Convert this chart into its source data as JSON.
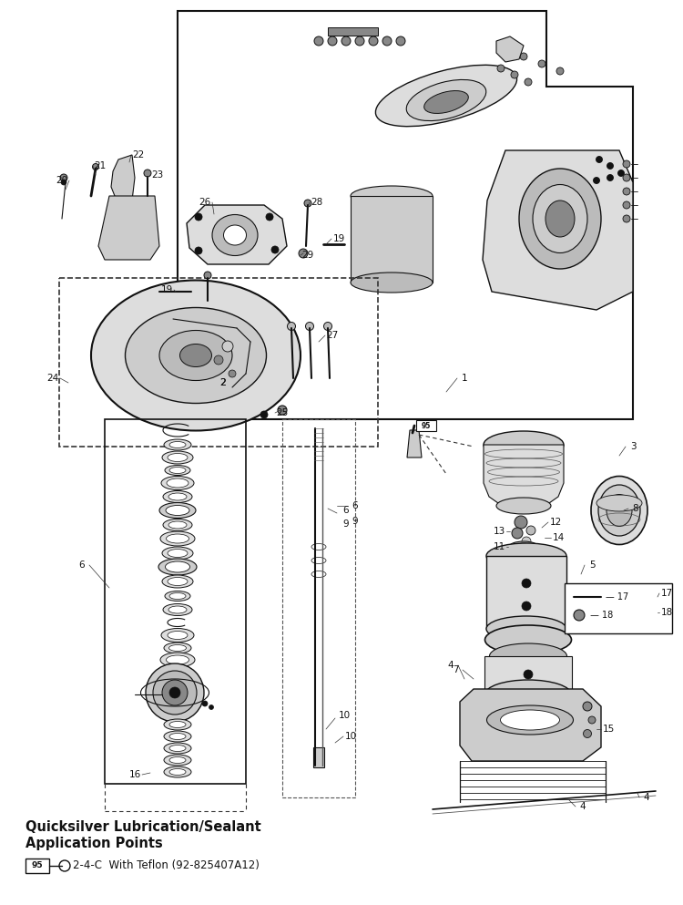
{
  "bg_color": "#ffffff",
  "fig_width": 7.5,
  "fig_height": 9.93,
  "dpi": 100,
  "legend_title_line1": "Quicksilver Lubrication/Sealant",
  "legend_title_line2": "Application Points",
  "legend_item": "2-4-C  With Teflon (92-825407A12)",
  "legend_item_label": "95"
}
